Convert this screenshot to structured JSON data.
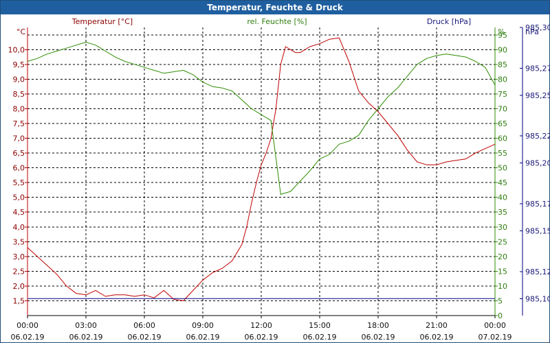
{
  "chart_data": {
    "type": "line",
    "title": "Temperatur, Feuchte & Druck",
    "x_ticks": [
      {
        "time": "00:00",
        "date": "06.02.19"
      },
      {
        "time": "03:00",
        "date": "06.02.19"
      },
      {
        "time": "06:00",
        "date": "06.02.19"
      },
      {
        "time": "09:00",
        "date": "06.02.19"
      },
      {
        "time": "12:00",
        "date": "06.02.19"
      },
      {
        "time": "15:00",
        "date": "06.02.19"
      },
      {
        "time": "18:00",
        "date": "06.02.19"
      },
      {
        "time": "21:00",
        "date": "06.02.19"
      },
      {
        "time": "00:00",
        "date": "07.02.19"
      }
    ],
    "xlim": [
      0,
      24
    ],
    "grid": true,
    "axes": {
      "temperature": {
        "label": "Temperatur [°C]",
        "unit": "°C",
        "ylim": [
          1.0,
          10.75
        ],
        "ticks": [
          "1,5",
          "2,0",
          "2,5",
          "3,0",
          "3,5",
          "4,0",
          "4,5",
          "5,0",
          "5,5",
          "6,0",
          "6,5",
          "7,0",
          "7,5",
          "8,0",
          "8,5",
          "9,0",
          "9,5",
          "10,0"
        ],
        "color": "#c00000"
      },
      "humidity": {
        "label": "rel. Feuchte [%]",
        "unit": "%",
        "ylim": [
          0,
          97.5
        ],
        "ticks": [
          "0",
          "5",
          "10",
          "15",
          "20",
          "25",
          "30",
          "35",
          "40",
          "45",
          "50",
          "55",
          "60",
          "65",
          "70",
          "75",
          "80",
          "85",
          "90",
          "95"
        ],
        "color": "#2e8b00"
      },
      "pressure": {
        "label": "Druck [hPa]",
        "unit": "hPa",
        "ylim": [
          985.0875,
          985.3
        ],
        "ticks": [
          "985,10",
          "985,12",
          "985,15",
          "985,17",
          "985,20",
          "985,22",
          "985,25",
          "985,27",
          "985,30"
        ],
        "color": "#000080"
      }
    },
    "series": [
      {
        "name": "Temperatur [°C]",
        "axis": "temperature",
        "color": "#c00000",
        "x": [
          0,
          0.5,
          1,
          1.5,
          2,
          2.5,
          3,
          3.5,
          4,
          4.5,
          5,
          5.5,
          6,
          6.5,
          7,
          7.5,
          8,
          8.5,
          9,
          9.5,
          10,
          10.5,
          11,
          11.25,
          11.5,
          11.75,
          12,
          12.25,
          12.5,
          12.75,
          13,
          13.25,
          13.5,
          13.75,
          14,
          14.5,
          15,
          15.5,
          16,
          16.5,
          17,
          17.5,
          18,
          18.5,
          19,
          19.5,
          20,
          20.5,
          21,
          21.5,
          22,
          22.5,
          23,
          23.5,
          24
        ],
        "values": [
          3.3,
          3.0,
          2.7,
          2.4,
          2.0,
          1.75,
          1.7,
          1.85,
          1.65,
          1.7,
          1.7,
          1.65,
          1.7,
          1.6,
          1.85,
          1.55,
          1.5,
          1.85,
          2.2,
          2.45,
          2.6,
          2.85,
          3.4,
          4.0,
          4.8,
          5.5,
          6.1,
          6.5,
          7.0,
          8.0,
          9.5,
          10.1,
          10.0,
          9.9,
          9.9,
          10.1,
          10.2,
          10.35,
          10.4,
          9.6,
          8.6,
          8.2,
          7.9,
          7.5,
          7.1,
          6.6,
          6.2,
          6.1,
          6.1,
          6.2,
          6.25,
          6.3,
          6.5,
          6.65,
          6.8
        ]
      },
      {
        "name": "rel. Feuchte [%]",
        "axis": "humidity",
        "color": "#2e8b00",
        "x": [
          0,
          0.5,
          1,
          1.5,
          2,
          2.5,
          3,
          3.5,
          4,
          4.5,
          5,
          5.5,
          6,
          6.5,
          7,
          7.5,
          8,
          8.5,
          9,
          9.5,
          10,
          10.5,
          11,
          11.5,
          12,
          12.5,
          13,
          13.5,
          14,
          14.5,
          15,
          15.5,
          16,
          16.5,
          17,
          17.5,
          18,
          18.5,
          19,
          19.5,
          20,
          20.5,
          21,
          21.5,
          22,
          22.5,
          23,
          23.5,
          24
        ],
        "values": [
          86,
          87,
          88.5,
          89.5,
          90.5,
          91.5,
          92.5,
          91.5,
          89.5,
          87.5,
          86,
          85,
          84,
          83,
          82,
          82.5,
          83,
          81.5,
          79,
          77.5,
          77,
          76,
          73,
          70,
          68,
          66,
          41,
          42,
          45.5,
          49,
          53,
          54.5,
          58,
          59,
          61,
          66,
          70,
          74,
          77,
          81,
          85,
          87,
          88,
          88.5,
          88,
          87.5,
          86,
          84,
          78
        ]
      },
      {
        "name": "Druck [hPa]",
        "axis": "pressure",
        "color": "#000080",
        "x": [
          0,
          24
        ],
        "values": [
          985.1,
          985.1
        ]
      }
    ]
  }
}
